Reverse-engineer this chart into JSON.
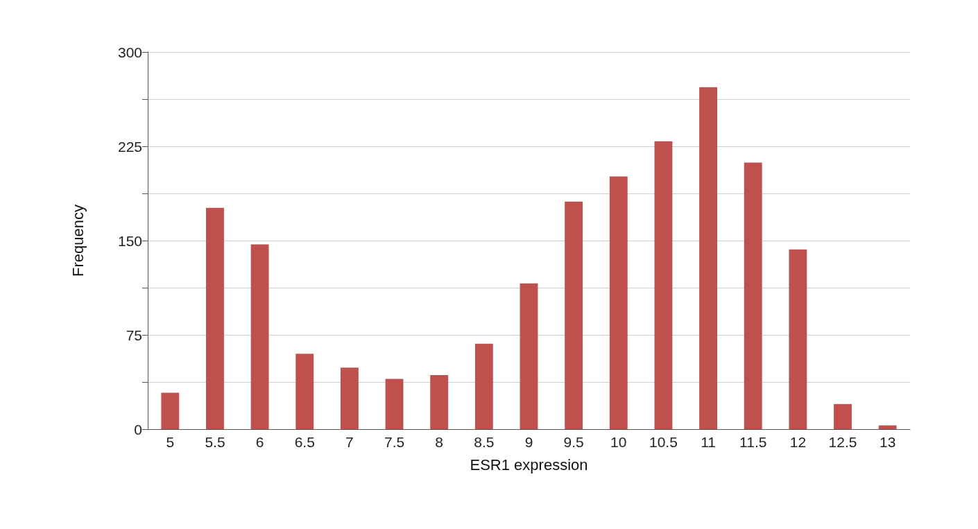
{
  "chart_data": {
    "type": "bar",
    "xlabel": "ESR1 expression",
    "ylabel": "Frequency",
    "categories": [
      "5",
      "5.5",
      "6",
      "6.5",
      "7",
      "7.5",
      "8",
      "8.5",
      "9",
      "9.5",
      "10",
      "10.5",
      "11",
      "11.5",
      "12",
      "12.5",
      "13"
    ],
    "values": [
      29,
      176,
      147,
      60,
      49,
      40,
      43,
      68,
      116,
      181,
      201,
      229,
      272,
      212,
      143,
      20,
      3
    ],
    "color": "#c0504d",
    "ylim": [
      0,
      300
    ],
    "yticks": [
      0,
      {
        "value": 37.5,
        "label": null
      },
      75,
      {
        "value": 112.5,
        "label": null
      },
      150,
      {
        "value": 187.5,
        "label": null
      },
      225,
      {
        "value": 262.5,
        "label": null
      },
      300
    ],
    "grid": "y"
  }
}
